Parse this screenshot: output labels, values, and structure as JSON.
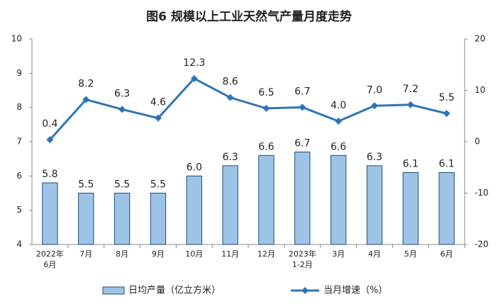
{
  "chart_data": {
    "type": "combo",
    "title": "图6  规模以上工业天然气产量月度走势",
    "categories": [
      "2022年\n6月",
      "7月",
      "8月",
      "9月",
      "10月",
      "11月",
      "12月",
      "2023年\n1-2月",
      "3月",
      "4月",
      "5月",
      "6月"
    ],
    "series": [
      {
        "name": "日均产量（亿立方米）",
        "type": "bar",
        "axis": "y",
        "color": "#9dc3e6",
        "values": [
          5.8,
          5.5,
          5.5,
          5.5,
          6.0,
          6.3,
          6.6,
          6.7,
          6.6,
          6.3,
          6.1,
          6.1
        ],
        "value_labels": [
          "5.8",
          "5.5",
          "5.5",
          "5.5",
          "6.0",
          "6.3",
          "6.6",
          "6.7",
          "6.6",
          "6.3",
          "6.1",
          "6.1"
        ]
      },
      {
        "name": "当月增速（%）",
        "type": "line",
        "axis": "y2",
        "color": "#2e75b6",
        "values": [
          0.4,
          8.2,
          6.3,
          4.6,
          12.3,
          8.6,
          6.5,
          6.7,
          4.0,
          7.0,
          7.2,
          5.5
        ],
        "value_labels": [
          "0.4",
          "8.2",
          "6.3",
          "4.6",
          "12.3",
          "8.6",
          "6.5",
          "6.7",
          "4.0",
          "7.0",
          "7.2",
          "5.5"
        ]
      }
    ],
    "ylim": [
      4,
      10
    ],
    "yticks": [
      4,
      5,
      6,
      7,
      8,
      9,
      10
    ],
    "y2lim": [
      -20,
      20
    ],
    "y2ticks": [
      -20,
      -10,
      0,
      10,
      20
    ],
    "grid": false
  }
}
